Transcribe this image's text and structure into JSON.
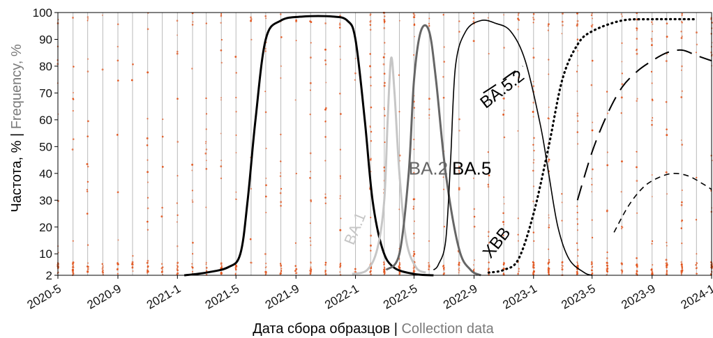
{
  "chart_data": {
    "type": "line",
    "xlabel_ru": "Дата сбора образцов",
    "xlabel_sep": " | ",
    "xlabel_en": "Collection data",
    "ylabel_ru": "Частота, %",
    "ylabel_sep": " | ",
    "ylabel_en": "Frequency, %",
    "ylim": [
      2,
      100
    ],
    "yticks": [
      2,
      10,
      20,
      30,
      40,
      50,
      60,
      70,
      80,
      90,
      100
    ],
    "xlim": [
      "2020-05-01",
      "2024-01-01"
    ],
    "xticks": [
      {
        "label": "2020-5",
        "date": "2020-05-01"
      },
      {
        "label": "2020-9",
        "date": "2020-09-01"
      },
      {
        "label": "2021-1",
        "date": "2021-01-01"
      },
      {
        "label": "2021-5",
        "date": "2021-05-01"
      },
      {
        "label": "2021-9",
        "date": "2021-09-01"
      },
      {
        "label": "2022-1",
        "date": "2022-01-01"
      },
      {
        "label": "2022-5",
        "date": "2022-05-01"
      },
      {
        "label": "2022-9",
        "date": "2022-09-01"
      },
      {
        "label": "2023-1",
        "date": "2023-01-01"
      },
      {
        "label": "2023-5",
        "date": "2023-05-01"
      },
      {
        "label": "2023-9",
        "date": "2023-09-01"
      },
      {
        "label": "2024-1",
        "date": "2024-01-01"
      }
    ],
    "grid": "vertical",
    "scatter_color": "#e2541c",
    "series": [
      {
        "key": "delta",
        "color": "#000000",
        "style": "solid-thick",
        "points": [
          [
            "2021-01-15",
            2
          ],
          [
            "2021-03-01",
            3
          ],
          [
            "2021-04-15",
            5
          ],
          [
            "2021-05-10",
            10
          ],
          [
            "2021-05-25",
            30
          ],
          [
            "2021-06-10",
            60
          ],
          [
            "2021-07-01",
            90
          ],
          [
            "2021-08-01",
            97
          ],
          [
            "2021-09-15",
            98.5
          ],
          [
            "2021-11-15",
            98.5
          ],
          [
            "2021-12-15",
            97
          ],
          [
            "2022-01-01",
            90
          ],
          [
            "2022-01-20",
            60
          ],
          [
            "2022-02-05",
            30
          ],
          [
            "2022-02-25",
            12
          ],
          [
            "2022-03-20",
            5
          ],
          [
            "2022-05-01",
            2.5
          ],
          [
            "2022-06-10",
            2
          ]
        ]
      },
      {
        "key": "ba1",
        "label": "BA.1",
        "color": "#c6c6c6",
        "style": "solid-thick",
        "points": [
          [
            "2021-12-25",
            2.5
          ],
          [
            "2022-01-25",
            4
          ],
          [
            "2022-02-15",
            12
          ],
          [
            "2022-03-01",
            30
          ],
          [
            "2022-03-08",
            60
          ],
          [
            "2022-03-15",
            83
          ],
          [
            "2022-03-22",
            70
          ],
          [
            "2022-04-01",
            40
          ],
          [
            "2022-04-15",
            15
          ],
          [
            "2022-05-05",
            5
          ],
          [
            "2022-05-25",
            3
          ]
        ]
      },
      {
        "key": "ba2",
        "label": "BA.2",
        "color": "#666666",
        "style": "solid-thick",
        "points": [
          [
            "2022-03-05",
            4
          ],
          [
            "2022-04-01",
            10
          ],
          [
            "2022-04-20",
            40
          ],
          [
            "2022-05-01",
            75
          ],
          [
            "2022-05-15",
            93
          ],
          [
            "2022-06-01",
            93
          ],
          [
            "2022-06-15",
            75
          ],
          [
            "2022-07-05",
            40
          ],
          [
            "2022-08-01",
            12
          ],
          [
            "2022-08-25",
            4
          ],
          [
            "2022-09-15",
            2
          ]
        ]
      },
      {
        "key": "ba5",
        "label": "BA.5",
        "color": "#000000",
        "style": "solid-thin",
        "points": [
          [
            "2022-06-10",
            4
          ],
          [
            "2022-06-20",
            6
          ],
          [
            "2022-07-05",
            15
          ],
          [
            "2022-07-15",
            45
          ],
          [
            "2022-07-25",
            80
          ],
          [
            "2022-08-15",
            93
          ],
          [
            "2022-09-15",
            97
          ],
          [
            "2022-10-15",
            96
          ],
          [
            "2022-11-15",
            93
          ],
          [
            "2022-12-15",
            82
          ],
          [
            "2023-01-15",
            58
          ],
          [
            "2023-02-01",
            40
          ],
          [
            "2023-02-20",
            20
          ],
          [
            "2023-03-15",
            8
          ],
          [
            "2023-04-15",
            3
          ],
          [
            "2023-05-01",
            2
          ]
        ]
      },
      {
        "key": "xbb",
        "label": "XBB",
        "color": "#000000",
        "style": "dotted",
        "points": [
          [
            "2022-10-01",
            3
          ],
          [
            "2022-11-01",
            4
          ],
          [
            "2022-12-01",
            8
          ],
          [
            "2023-01-01",
            25
          ],
          [
            "2023-02-01",
            50
          ],
          [
            "2023-03-01",
            75
          ],
          [
            "2023-04-01",
            88
          ],
          [
            "2023-05-01",
            93
          ],
          [
            "2023-07-01",
            97
          ],
          [
            "2023-09-01",
            97.5
          ],
          [
            "2023-12-01",
            97.5
          ]
        ]
      },
      {
        "key": "ba52",
        "label": "BA.5.2",
        "color": "#000000",
        "style": "long-dash",
        "points": [
          [
            "2022-09-20",
            70
          ],
          [
            "2022-10-15",
            73
          ],
          [
            "2022-11-15",
            77
          ],
          [
            "2022-12-10",
            80
          ]
        ]
      },
      {
        "key": "late_long",
        "color": "#000000",
        "style": "long-dash",
        "points": [
          [
            "2023-04-01",
            30
          ],
          [
            "2023-05-01",
            48
          ],
          [
            "2023-06-01",
            62
          ],
          [
            "2023-07-01",
            72
          ],
          [
            "2023-08-01",
            78
          ],
          [
            "2023-09-01",
            82
          ],
          [
            "2023-10-01",
            85
          ],
          [
            "2023-11-01",
            86
          ],
          [
            "2023-12-01",
            84
          ],
          [
            "2024-01-01",
            82
          ]
        ]
      },
      {
        "key": "late_short",
        "color": "#000000",
        "style": "short-dash",
        "points": [
          [
            "2023-06-15",
            18
          ],
          [
            "2023-07-15",
            28
          ],
          [
            "2023-08-15",
            35
          ],
          [
            "2023-09-15",
            38.5
          ],
          [
            "2023-10-15",
            40
          ],
          [
            "2023-11-15",
            39
          ],
          [
            "2023-12-15",
            36
          ],
          [
            "2024-01-01",
            34
          ]
        ]
      }
    ],
    "annotations": [
      {
        "text": "BA.1",
        "color": "#c6c6c6",
        "x": "2021-12-28",
        "y": 13,
        "rotate": -68,
        "size": 22
      },
      {
        "text": "BA.2",
        "color": "#666666",
        "x": "2022-04-20",
        "y": 39.5,
        "rotate": 0,
        "size": 26
      },
      {
        "text": "BA.5",
        "color": "#000000",
        "x": "2022-07-18",
        "y": 39.5,
        "rotate": 0,
        "size": 26
      },
      {
        "text": "BA.5.2",
        "color": "#000000",
        "x": "2022-09-25",
        "y": 64,
        "rotate": -38,
        "size": 24
      },
      {
        "text": "XBB",
        "color": "#000000",
        "x": "2022-10-05",
        "y": 8,
        "rotate": -52,
        "size": 24
      }
    ]
  }
}
